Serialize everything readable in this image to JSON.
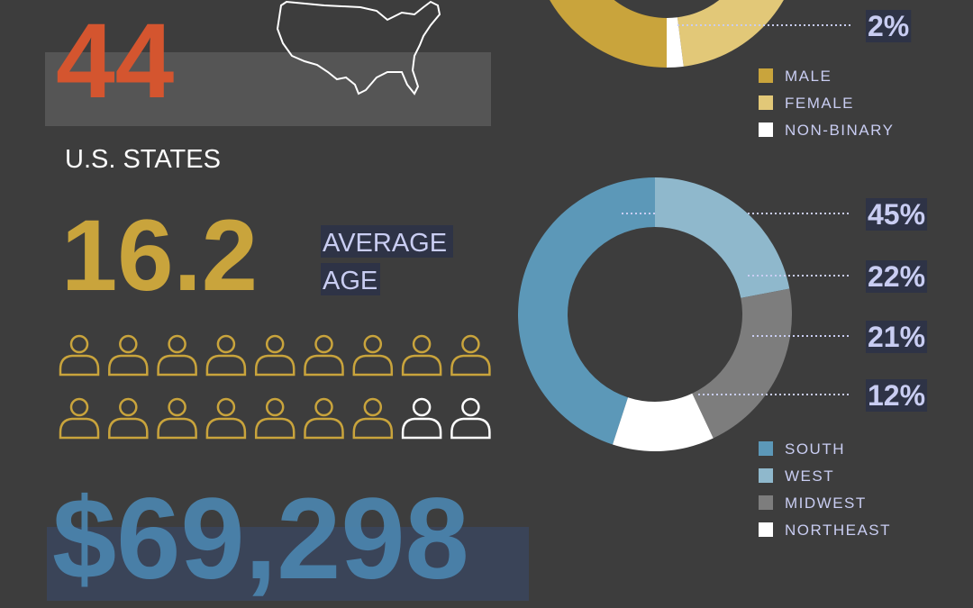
{
  "stats": {
    "states_number": "44",
    "states_label": "U.S. STATES",
    "age_number": "16.2",
    "age_label_1": "AVERAGE",
    "age_label_2": "AGE",
    "income": "$69,298"
  },
  "chart_data": [
    {
      "type": "donut",
      "categories": [
        "MALE",
        "FEMALE",
        "NON-BINARY"
      ],
      "values": [
        50,
        48,
        2
      ],
      "value_labels": [
        null,
        null,
        "2%"
      ],
      "colors": [
        "#c9a43c",
        "#e2c878",
        "#ffffff"
      ]
    },
    {
      "type": "donut",
      "categories": [
        "SOUTH",
        "WEST",
        "MIDWEST",
        "NORTHEAST"
      ],
      "values": [
        45,
        22,
        21,
        12
      ],
      "value_labels": [
        "45%",
        "22%",
        "21%",
        "12%"
      ],
      "colors": [
        "#5c98b8",
        "#8fb8cc",
        "#7d7d7d",
        "#ffffff"
      ]
    }
  ]
}
